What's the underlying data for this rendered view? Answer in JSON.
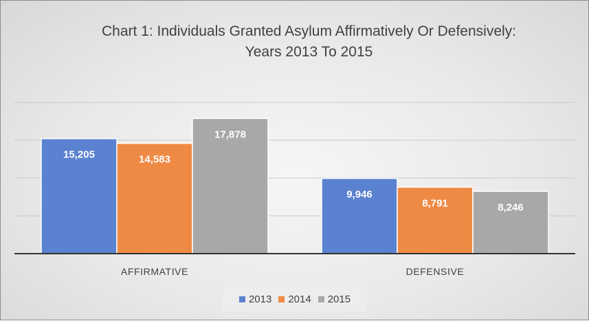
{
  "chart_data": {
    "type": "bar",
    "title_line1": "Chart 1: Individuals Granted Asylum Affirmatively Or Defensively:",
    "title_line2": "Years 2013 To 2015",
    "categories": [
      "AFFIRMATIVE",
      "DEFENSIVE"
    ],
    "series": [
      {
        "name": "2013",
        "color": "#5b82d0",
        "values": [
          15205,
          9946
        ],
        "labels": [
          "15,205",
          "9,946"
        ]
      },
      {
        "name": "2014",
        "color": "#ef8a45",
        "values": [
          14583,
          8791
        ],
        "labels": [
          "14,583",
          "8,791"
        ]
      },
      {
        "name": "2015",
        "color": "#a8a8a8",
        "values": [
          17878,
          8246
        ],
        "labels": [
          "17,878",
          "8,246"
        ]
      }
    ],
    "ylim": [
      0,
      20000
    ],
    "gridlines": true,
    "legend_position": "bottom"
  }
}
